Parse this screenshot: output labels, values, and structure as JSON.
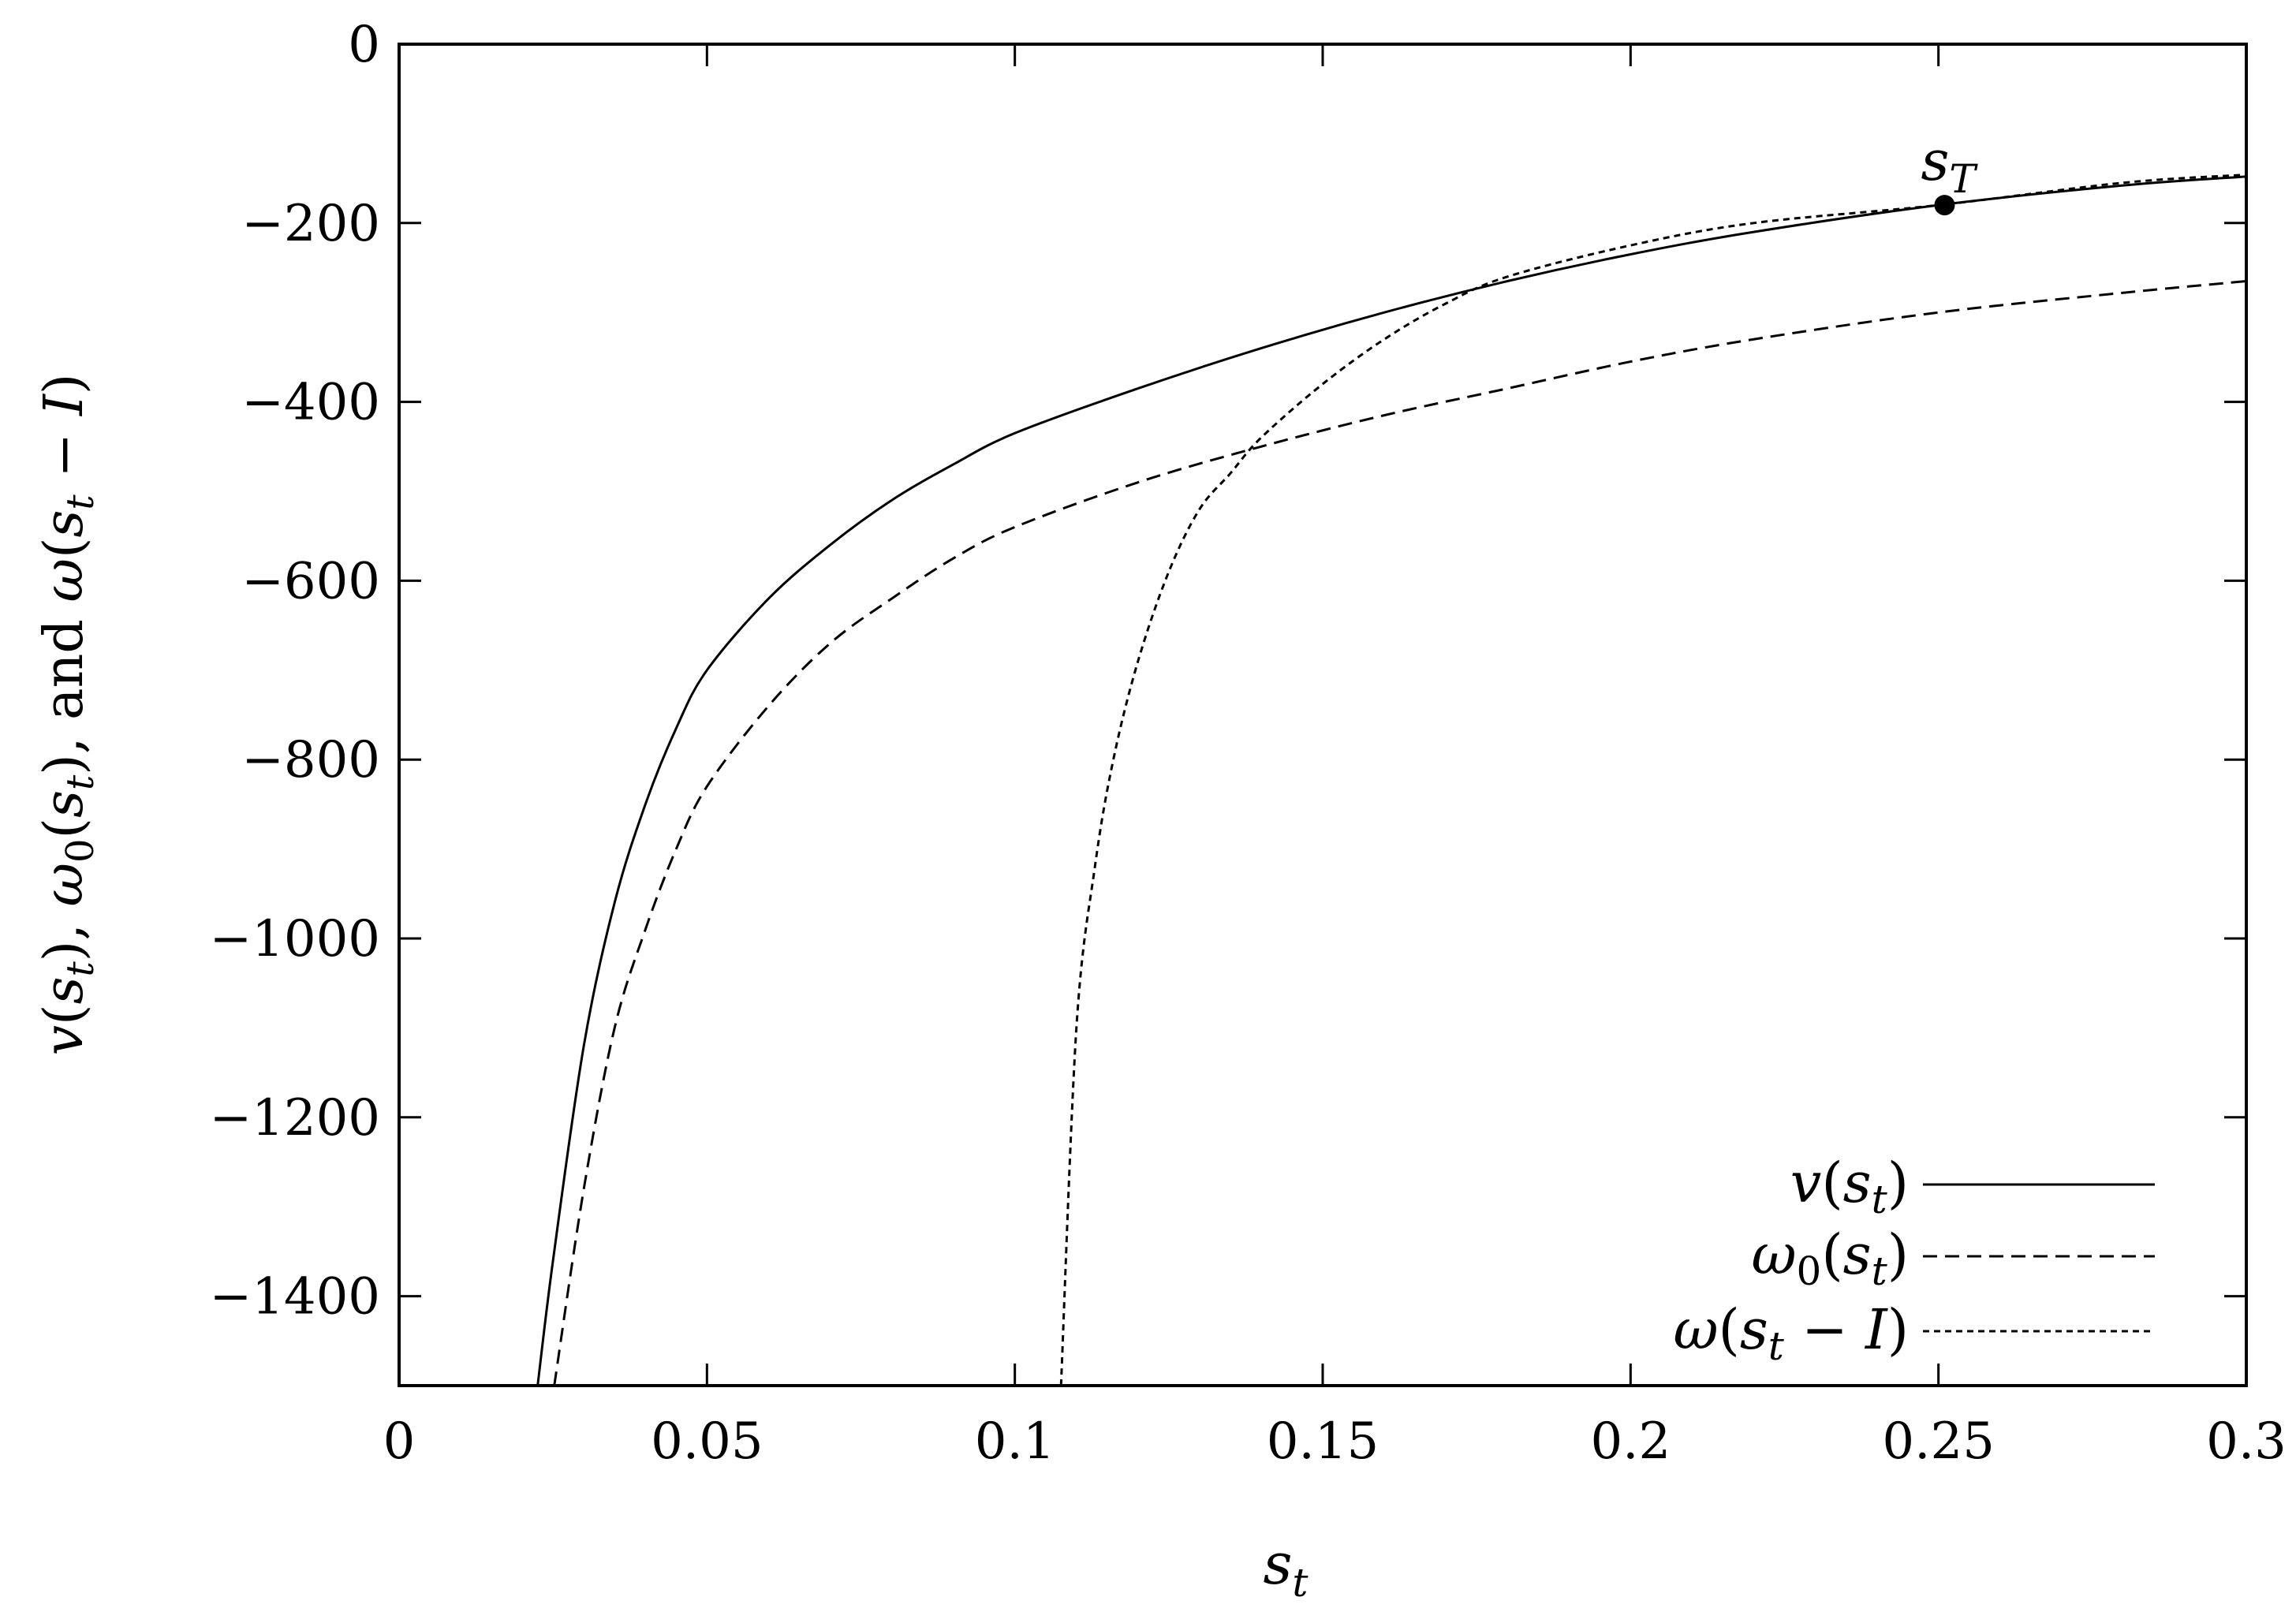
{
  "chart_data": {
    "type": "line",
    "title": "",
    "xlabel": "s_t",
    "ylabel": "v(s_t), ω_0(s_t), and ω(s_t − I)",
    "xlim": [
      0,
      0.3
    ],
    "ylim": [
      -1500,
      0
    ],
    "x_ticks": [
      "0",
      "0.05",
      "0.1",
      "0.15",
      "0.2",
      "0.25",
      "0.3"
    ],
    "y_ticks": [
      "0",
      "−200",
      "−400",
      "−600",
      "−800",
      "−1000",
      "−1200",
      "−1400"
    ],
    "grid": false,
    "legend_position": "bottom-right",
    "series": [
      {
        "name": "v(s_t)",
        "style": "solid",
        "x": [
          0.0225,
          0.025,
          0.03,
          0.035,
          0.04,
          0.045,
          0.05,
          0.06,
          0.07,
          0.08,
          0.09,
          0.1,
          0.12,
          0.14,
          0.16,
          0.18,
          0.2,
          0.22,
          0.25,
          0.28,
          0.3
        ],
        "y": [
          -1500,
          -1360,
          -1120,
          -960,
          -850,
          -765,
          -700,
          -620,
          -560,
          -510,
          -470,
          -435,
          -385,
          -340,
          -300,
          -265,
          -235,
          -210,
          -180,
          -158,
          -148
        ]
      },
      {
        "name": "ω_0(s_t)",
        "style": "dashed",
        "x": [
          0.0252,
          0.03,
          0.035,
          0.04,
          0.045,
          0.05,
          0.06,
          0.07,
          0.08,
          0.09,
          0.1,
          0.12,
          0.14,
          0.16,
          0.18,
          0.2,
          0.22,
          0.25,
          0.28,
          0.3
        ],
        "y": [
          -1500,
          -1280,
          -1100,
          -990,
          -900,
          -830,
          -740,
          -670,
          -620,
          -575,
          -540,
          -490,
          -450,
          -415,
          -385,
          -355,
          -330,
          -300,
          -278,
          -265
        ]
      },
      {
        "name": "ω(s_t − I)",
        "style": "dotted",
        "x": [
          0.1075,
          0.11,
          0.113,
          0.116,
          0.12,
          0.125,
          0.13,
          0.135,
          0.14,
          0.15,
          0.16,
          0.17,
          0.18,
          0.2,
          0.22,
          0.25,
          0.28,
          0.3
        ],
        "y": [
          -1500,
          -1100,
          -920,
          -800,
          -690,
          -590,
          -520,
          -480,
          -440,
          -380,
          -330,
          -290,
          -260,
          -225,
          -200,
          -180,
          -155,
          -146
        ]
      }
    ],
    "annotations": [
      {
        "text": "s_T",
        "x": 0.251,
        "y": -180,
        "marker": "filled-circle"
      }
    ]
  },
  "labels": {
    "legend": [
      "v(s_t)",
      "ω_0(s_t)",
      "ω(s_t − I)"
    ],
    "annotation": "s_T"
  }
}
